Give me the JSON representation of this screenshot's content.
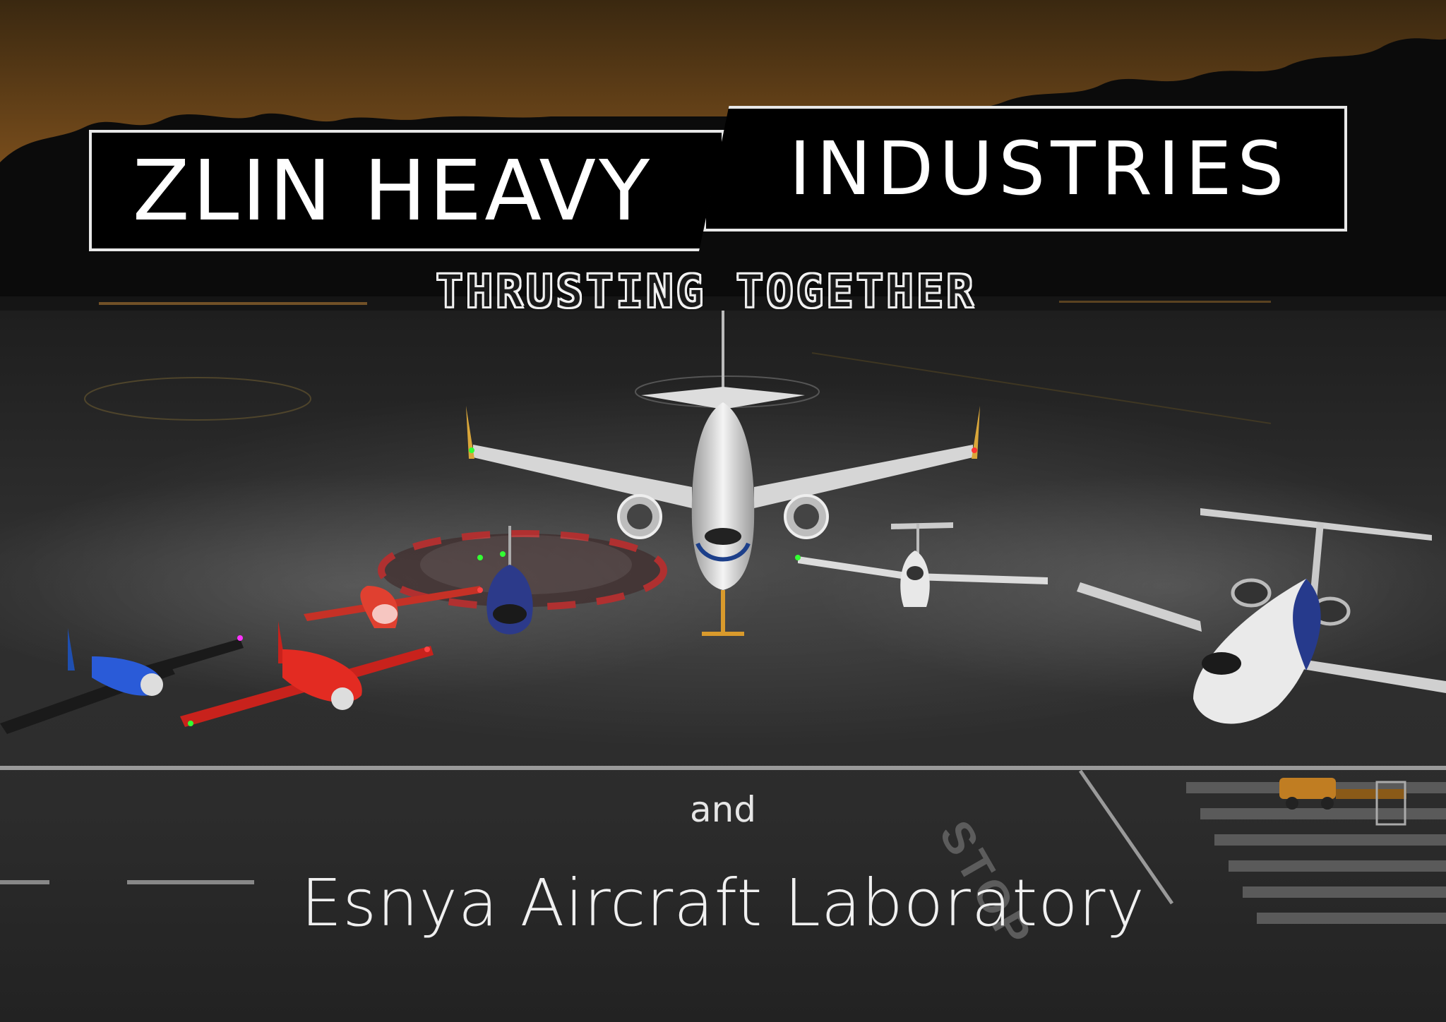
{
  "logo": {
    "left_text": "ZLIN HEAVY",
    "right_text": "INDUSTRIES",
    "tagline": "THRUSTING TOGETHER"
  },
  "credits": {
    "and": "and",
    "lab": "Esnya Aircraft Laboratory"
  },
  "ground": {
    "stop_marking": "STOP"
  },
  "colors": {
    "sky_top": "#3b2a12",
    "sky_horizon": "#8a5a22",
    "tarmac": "#2b2b2b",
    "logo_bg": "#000000",
    "logo_border": "#e8e8e8"
  }
}
